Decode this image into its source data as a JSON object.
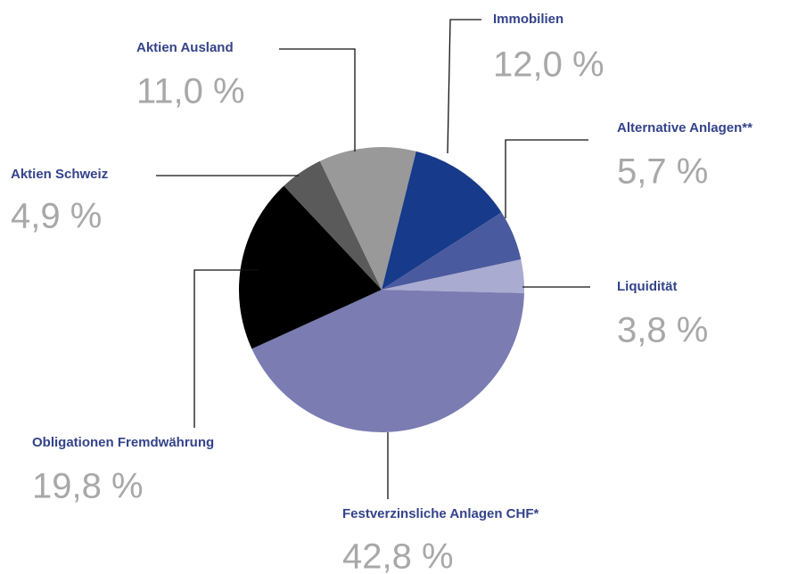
{
  "chart_data": {
    "type": "pie",
    "categories": [
      "Immobilien",
      "Alternative Anlagen**",
      "Liquidität",
      "Festverzinsliche Anlagen CHF*",
      "Obligationen Fremdwährung",
      "Aktien Schweiz",
      "Aktien Ausland"
    ],
    "values": [
      12.0,
      5.7,
      3.8,
      42.8,
      19.8,
      4.9,
      11.0
    ],
    "value_labels": [
      "12,0 %",
      "5,7 %",
      "3,8 %",
      "42,8 %",
      "19,8 %",
      "4,9 %",
      "11,0 %"
    ],
    "colors": [
      "#173a8a",
      "#4a5a9e",
      "#a9abd0",
      "#7a7cb2",
      "#000000",
      "#5a5a5a",
      "#999999"
    ]
  }
}
